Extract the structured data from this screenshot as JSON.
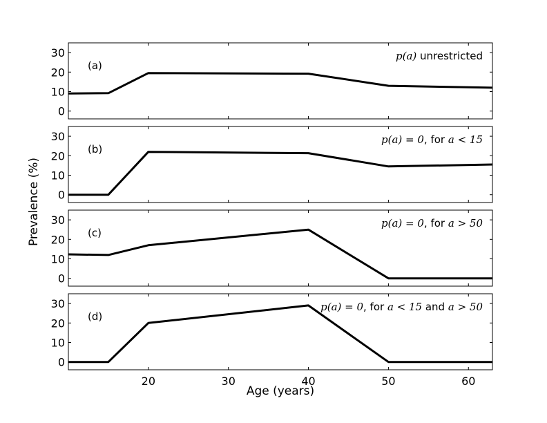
{
  "chart_data": {
    "type": "line",
    "xlabel": "Age (years)",
    "ylabel": "Prevalence (%)",
    "xlim": [
      10,
      63
    ],
    "ylim": [
      -4,
      35
    ],
    "xticks": [
      20,
      30,
      40,
      50,
      60
    ],
    "yticks": [
      0,
      10,
      20,
      30
    ],
    "grid": false,
    "panels": [
      {
        "label": "(a)",
        "annotation": {
          "math1": "p(a)",
          "text1": " unrestricted",
          "math2": "",
          "text2": "",
          "math3": ""
        },
        "x": [
          10,
          15,
          20,
          40,
          50,
          63
        ],
        "y": [
          9,
          9.2,
          19.5,
          19.2,
          13,
          12
        ]
      },
      {
        "label": "(b)",
        "annotation": {
          "math1": "p(a) = 0",
          "text1": ", for ",
          "math2": "a < 15",
          "text2": "",
          "math3": ""
        },
        "x": [
          10,
          15,
          20,
          40,
          50,
          63
        ],
        "y": [
          0,
          0,
          22,
          21.3,
          14.5,
          15.5
        ]
      },
      {
        "label": "(c)",
        "annotation": {
          "math1": "p(a) = 0",
          "text1": ", for ",
          "math2": "a > 50",
          "text2": "",
          "math3": ""
        },
        "x": [
          10,
          15,
          20,
          40,
          50,
          63
        ],
        "y": [
          12.3,
          12,
          17,
          25,
          0,
          0
        ]
      },
      {
        "label": "(d)",
        "annotation": {
          "math1": "p(a) = 0",
          "text1": ", for ",
          "math2": "a < 15",
          "text2": " and ",
          "math3": "a > 50"
        },
        "x": [
          10,
          15,
          20,
          40,
          50,
          63
        ],
        "y": [
          0,
          0,
          20,
          29,
          0,
          0
        ]
      }
    ]
  }
}
